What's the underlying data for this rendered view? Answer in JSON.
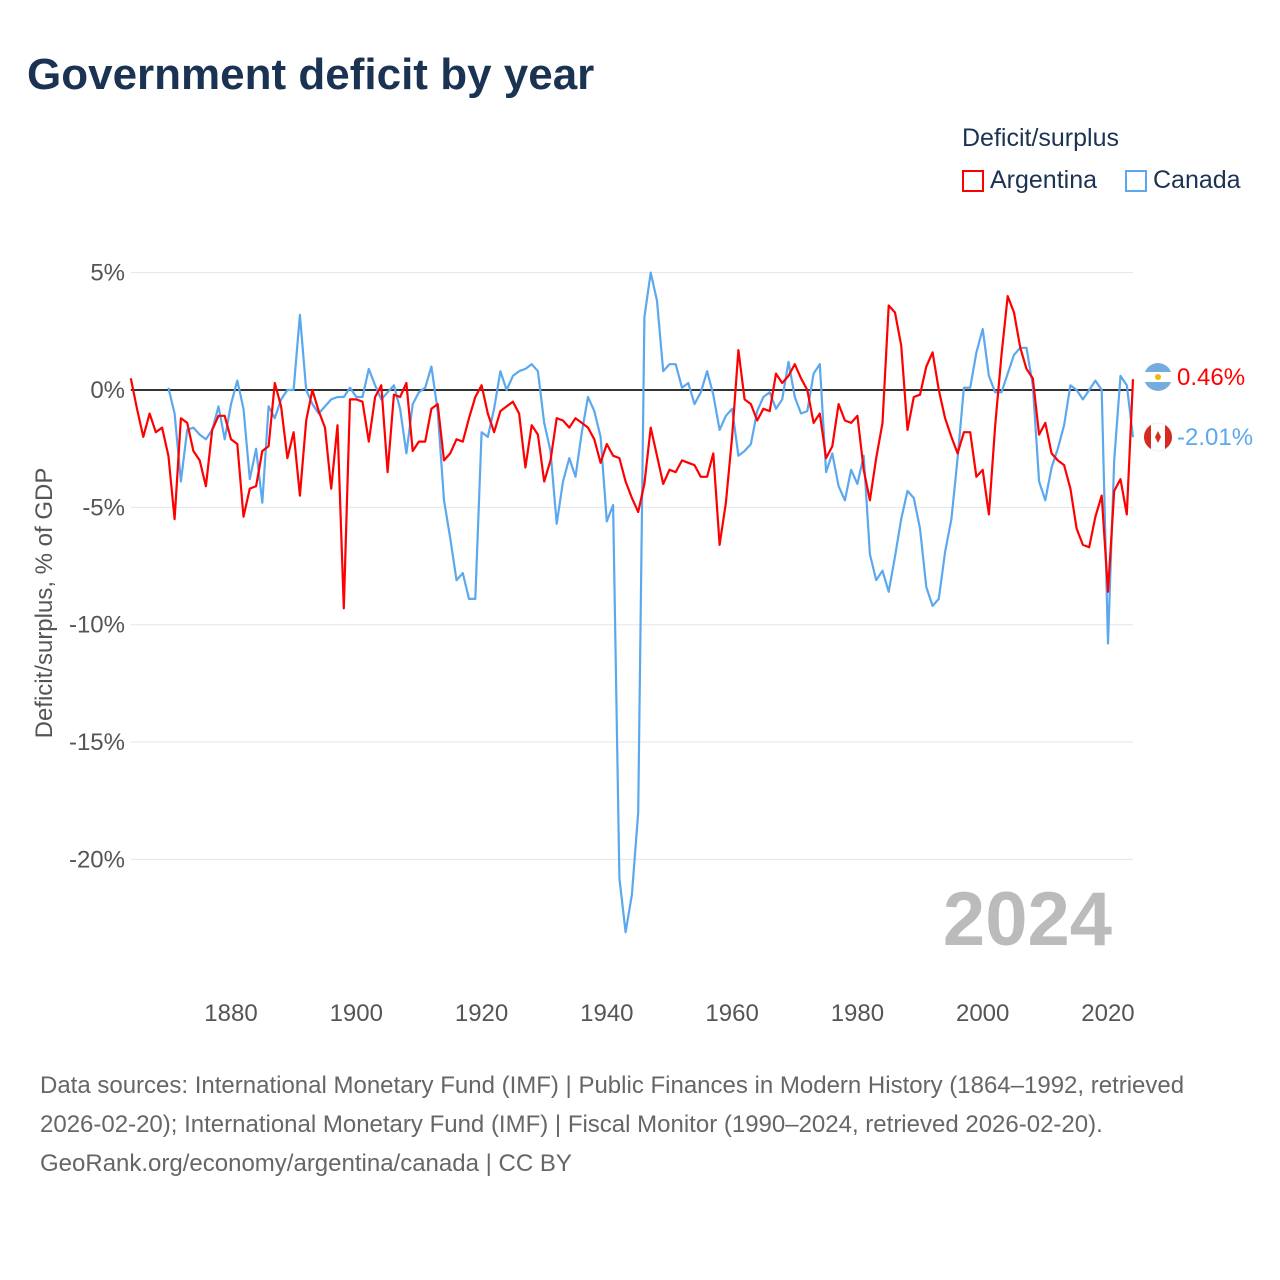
{
  "title": "Government deficit by year",
  "legend": {
    "title": "Deficit/surplus",
    "items": [
      {
        "label": "Argentina",
        "color": "#ff0000"
      },
      {
        "label": "Canada",
        "color": "#5ba8ef"
      }
    ]
  },
  "year_label": "2024",
  "footer": {
    "sources": "Data sources: International Monetary Fund (IMF) | Public Finances in Modern History (1864–1992, retrieved 2026-02-20); International Monetary Fund (IMF) | Fiscal Monitor (1990–2024, retrieved 2026-02-20).",
    "credit": "GeoRank.org/economy/argentina/canada | CC BY"
  },
  "chart_data": {
    "type": "line",
    "title": "Government deficit by year",
    "xlabel": "",
    "ylabel": "Deficit/surplus, % of GDP",
    "xlim": [
      1864,
      2024
    ],
    "ylim": [
      -24,
      6
    ],
    "x_ticks": [
      1880,
      1900,
      1920,
      1940,
      1960,
      1980,
      2000,
      2020
    ],
    "x_tick_labels": [
      "1880",
      "1900",
      "1920",
      "1940",
      "1960",
      "1980",
      "2000",
      "2020"
    ],
    "y_ticks": [
      5,
      0,
      -5,
      -10,
      -15,
      -20
    ],
    "y_tick_labels": [
      "5%",
      "0%",
      "-5%",
      "-10%",
      "-15%",
      "-20%"
    ],
    "grid": true,
    "legend_position": "top-right",
    "end_labels": [
      "0.46%",
      "-2.01%"
    ],
    "series": [
      {
        "name": "Argentina",
        "color": "#ff0000",
        "start_year": 1864,
        "values": [
          0.5,
          -0.8,
          -2.0,
          -1.0,
          -1.8,
          -1.6,
          -2.8,
          -5.5,
          -1.2,
          -1.4,
          -2.6,
          -3.0,
          -4.1,
          -1.7,
          -1.1,
          -1.1,
          -2.1,
          -2.3,
          -5.4,
          -4.2,
          -4.1,
          -2.6,
          -2.4,
          0.3,
          -0.7,
          -2.9,
          -1.8,
          -4.5,
          -1.3,
          0.0,
          -0.9,
          -1.6,
          -4.2,
          -1.5,
          -9.3,
          -0.4,
          -0.4,
          -0.5,
          -2.2,
          -0.3,
          0.2,
          -3.5,
          -0.2,
          -0.3,
          0.3,
          -2.6,
          -2.2,
          -2.2,
          -0.8,
          -0.6,
          -3.0,
          -2.7,
          -2.1,
          -2.2,
          -1.2,
          -0.3,
          0.2,
          -1.0,
          -1.8,
          -0.9,
          -0.7,
          -0.5,
          -1.0,
          -3.3,
          -1.5,
          -1.9,
          -3.9,
          -3.0,
          -1.2,
          -1.3,
          -1.6,
          -1.2,
          -1.4,
          -1.6,
          -2.1,
          -3.1,
          -2.3,
          -2.8,
          -2.9,
          -3.9,
          -4.6,
          -5.2,
          -4.0,
          -1.6,
          -2.8,
          -4.0,
          -3.4,
          -3.5,
          -3.0,
          -3.1,
          -3.2,
          -3.7,
          -3.7,
          -2.7,
          -6.6,
          -4.8,
          -2.0,
          1.7,
          -0.4,
          -0.6,
          -1.3,
          -0.8,
          -0.9,
          0.7,
          0.3,
          0.6,
          1.1,
          0.5,
          0.0,
          -1.4,
          -1.0,
          -2.9,
          -2.4,
          -0.6,
          -1.3,
          -1.4,
          -1.1,
          -3.4,
          -4.7,
          -2.9,
          -1.4,
          3.6,
          3.3,
          1.9,
          -1.7,
          -0.3,
          -0.2,
          1.0,
          1.6,
          0.0,
          -1.2,
          -2.0,
          -2.7,
          -1.8,
          -1.8,
          -3.7,
          -3.4,
          -5.3,
          -1.5,
          1.5,
          4.0,
          3.3,
          1.8,
          0.9,
          0.5,
          -1.9,
          -1.4,
          -2.7,
          -3.0,
          -3.2,
          -4.2,
          -5.9,
          -6.6,
          -6.7,
          -5.4,
          -4.5,
          -8.6,
          -4.3,
          -3.8,
          -5.3,
          0.46
        ]
      },
      {
        "name": "Canada",
        "color": "#5ba8ef",
        "start_year": 1870,
        "values": [
          0.1,
          -1.0,
          -3.9,
          -1.7,
          -1.6,
          -1.9,
          -2.1,
          -1.7,
          -0.7,
          -2.1,
          -0.6,
          0.4,
          -0.8,
          -3.8,
          -2.5,
          -4.8,
          -0.7,
          -1.2,
          -0.4,
          0.0,
          0.0,
          3.2,
          0.0,
          -0.6,
          -1.0,
          -0.7,
          -0.4,
          -0.3,
          -0.3,
          0.1,
          -0.3,
          -0.3,
          0.9,
          0.2,
          -0.4,
          -0.1,
          0.2,
          -0.8,
          -2.7,
          -0.6,
          -0.1,
          0.1,
          1.0,
          -0.9,
          -4.7,
          -6.3,
          -8.1,
          -7.8,
          -8.9,
          -8.9,
          -1.8,
          -2.0,
          -0.8,
          0.8,
          0.0,
          0.6,
          0.8,
          0.9,
          1.1,
          0.8,
          -1.4,
          -2.6,
          -5.7,
          -3.9,
          -2.9,
          -3.7,
          -1.8,
          -0.3,
          -0.9,
          -2.0,
          -5.6,
          -4.9,
          -20.8,
          -23.1,
          -21.5,
          -18.0,
          3.1,
          5.0,
          3.8,
          0.8,
          1.1,
          1.1,
          0.1,
          0.3,
          -0.6,
          -0.1,
          0.8,
          -0.2,
          -1.7,
          -1.1,
          -0.8,
          -2.8,
          -2.6,
          -2.3,
          -0.9,
          -0.3,
          -0.1,
          -0.8,
          -0.4,
          1.2,
          -0.3,
          -1.0,
          -0.9,
          0.7,
          1.1,
          -3.5,
          -2.7,
          -4.1,
          -4.7,
          -3.4,
          -4.0,
          -2.8,
          -7.0,
          -8.1,
          -7.7,
          -8.6,
          -7.1,
          -5.5,
          -4.3,
          -4.6,
          -5.9,
          -8.4,
          -9.2,
          -8.9,
          -6.9,
          -5.5,
          -2.9,
          0.1,
          0.1,
          1.6,
          2.6,
          0.6,
          -0.1,
          -0.1,
          0.7,
          1.5,
          1.8,
          1.8,
          0.2,
          -3.9,
          -4.7,
          -3.3,
          -2.5,
          -1.5,
          0.2,
          0.0,
          -0.4,
          0.0,
          0.4,
          0.0,
          -10.8,
          -3.0,
          0.6,
          0.2,
          -2.01
        ]
      }
    ]
  }
}
